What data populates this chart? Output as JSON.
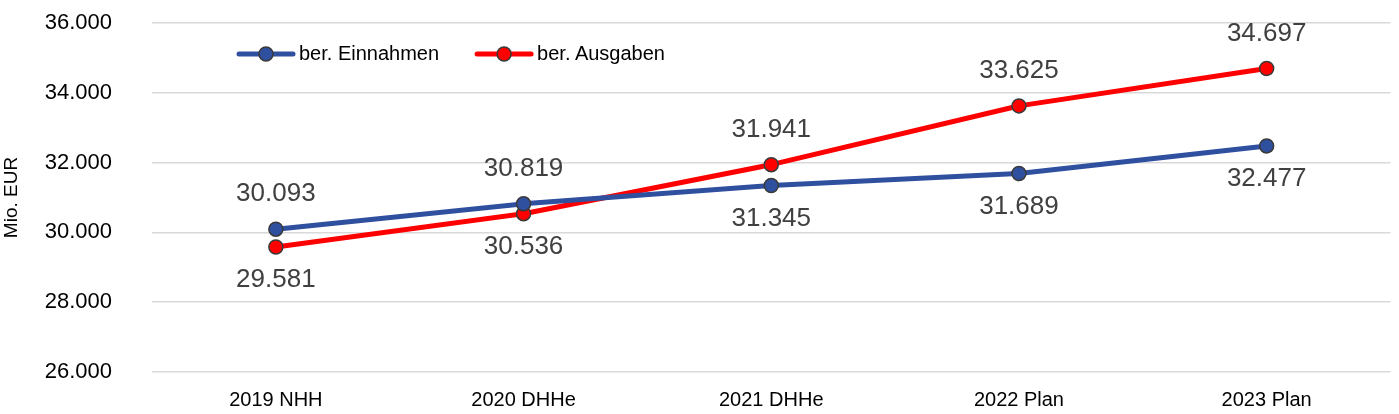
{
  "chart_data": {
    "type": "line",
    "categories": [
      "2019 NHH",
      "2020 DHHe",
      "2021 DHHe",
      "2022 Plan",
      "2023 Plan"
    ],
    "ylabel": "Mio. EUR",
    "ylim": [
      26000,
      36000
    ],
    "yticks": [
      {
        "value": 26000,
        "label": "26.000"
      },
      {
        "value": 28000,
        "label": "28.000"
      },
      {
        "value": 30000,
        "label": "30.000"
      },
      {
        "value": 32000,
        "label": "32.000"
      },
      {
        "value": 34000,
        "label": "34.000"
      },
      {
        "value": 36000,
        "label": "36.000"
      }
    ],
    "grid": "y",
    "legend": "top left",
    "marker": "circle",
    "line_style": "solid",
    "series": [
      {
        "name": "ber. Einnahmen",
        "color": "#2f4f9f",
        "values": [
          30093,
          30819,
          31345,
          31689,
          32477
        ],
        "value_labels": [
          "30.093",
          "30.819",
          "31.345",
          "31.689",
          "32.477"
        ]
      },
      {
        "name": "ber. Ausgaben",
        "color": "#ff0000",
        "values": [
          29581,
          30536,
          31941,
          33625,
          34697
        ],
        "value_labels": [
          "29.581",
          "30.536",
          "31.941",
          "33.625",
          "34.697"
        ]
      }
    ]
  }
}
